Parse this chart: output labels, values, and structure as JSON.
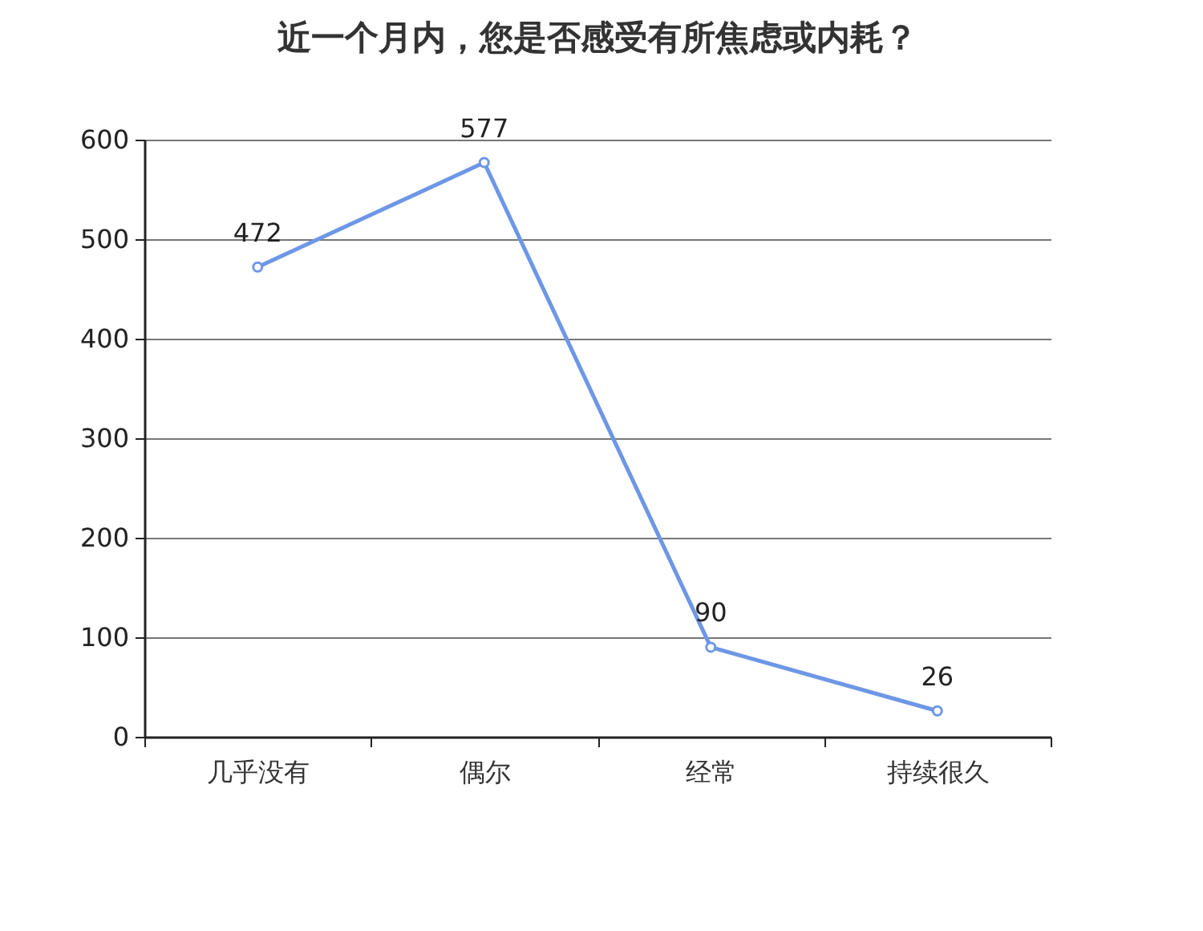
{
  "chart_data": {
    "type": "line",
    "title": "近一个月内，您是否感受有所焦虑或内耗？",
    "categories": [
      "几乎没有",
      "偶尔",
      "经常",
      "持续很久"
    ],
    "values": [
      472,
      577,
      90,
      26
    ],
    "color": "#6d97e6",
    "ylim": [
      0,
      600
    ],
    "yticks": [
      0,
      100,
      200,
      300,
      400,
      500,
      600
    ],
    "grid": "y",
    "marker": "circle",
    "data_labels": true
  }
}
